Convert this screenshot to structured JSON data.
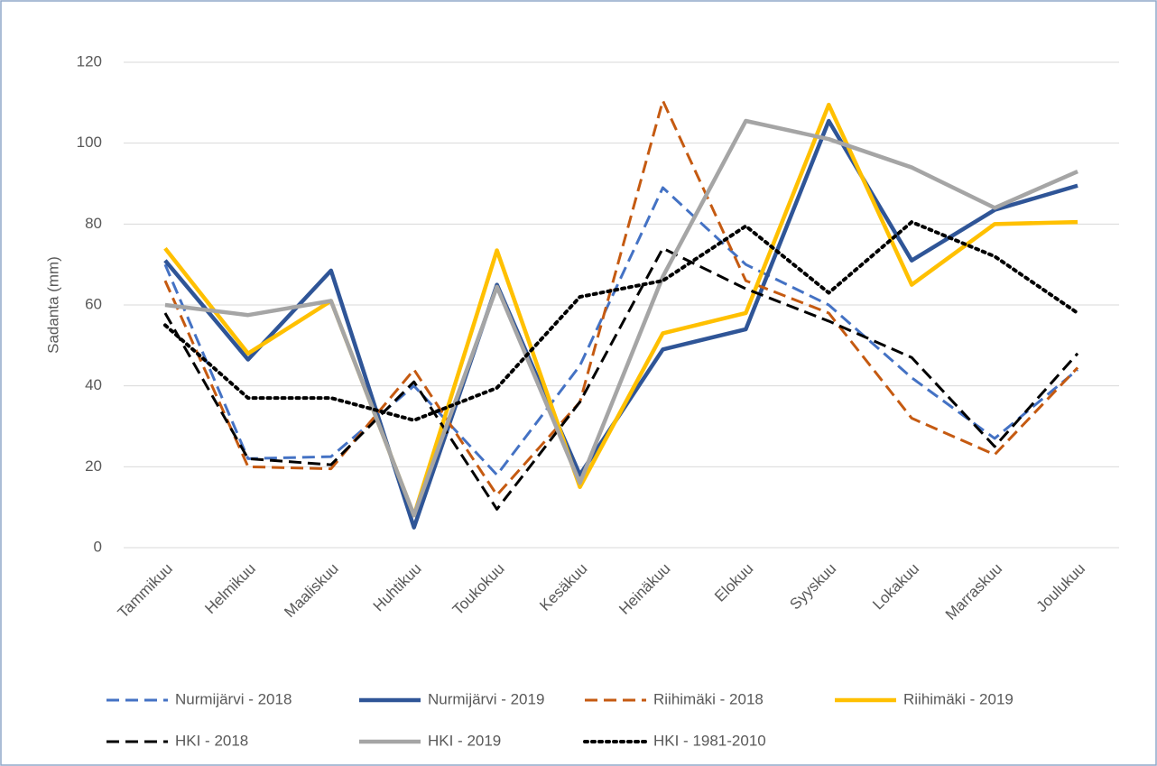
{
  "chart_data": {
    "type": "line",
    "y_label": "Sadanta (mm)",
    "categories": [
      "Tammikuu",
      "Helmikuu",
      "Maaliskuu",
      "Huhtikuu",
      "Toukokuu",
      "Kesäkuu",
      "Heinäkuu",
      "Elokuu",
      "Syyskuu",
      "Lokakuu",
      "Marraskuu",
      "Joulukuu"
    ],
    "ylim": [
      0,
      120
    ],
    "yticks": [
      0,
      20,
      40,
      60,
      80,
      100,
      120
    ],
    "grid": true,
    "series": [
      {
        "name": "Nurmijärvi - 2018",
        "color": "#4472c4",
        "style": "dashed",
        "values": [
          70,
          22,
          22.5,
          40,
          18,
          45,
          89,
          70,
          60,
          42,
          27,
          44
        ]
      },
      {
        "name": "Nurmijärvi - 2019",
        "color": "#2f5597",
        "style": "solid",
        "values": [
          71,
          46.5,
          68.5,
          5,
          65,
          18,
          49,
          54,
          105.5,
          71,
          83.5,
          89.5
        ]
      },
      {
        "name": "Riihimäki - 2018",
        "color": "#c55a11",
        "style": "dashed",
        "values": [
          66,
          20,
          19.5,
          44,
          13,
          36,
          110.5,
          66,
          58,
          32,
          23,
          44.5
        ]
      },
      {
        "name": "Riihimäki - 2019",
        "color": "#ffc000",
        "style": "solid",
        "values": [
          74,
          48,
          61,
          8,
          73.5,
          15,
          53,
          58,
          109.5,
          65,
          80,
          80.5
        ]
      },
      {
        "name": "HKI - 2018",
        "color": "#000000",
        "style": "dashed",
        "values": [
          58,
          22,
          20.5,
          41,
          9.5,
          36,
          74,
          64,
          56,
          47,
          25,
          48
        ]
      },
      {
        "name": "HKI - 2019",
        "color": "#a5a5a5",
        "style": "solid",
        "values": [
          60,
          57.5,
          61,
          8,
          64.5,
          16,
          67,
          105.5,
          101,
          94,
          84,
          93
        ]
      },
      {
        "name": "HKI - 1981-2010",
        "color": "#000000",
        "style": "dotted",
        "values": [
          55,
          37,
          37,
          31.5,
          39.5,
          62,
          66,
          79.5,
          63,
          80.5,
          72,
          58
        ]
      }
    ]
  }
}
